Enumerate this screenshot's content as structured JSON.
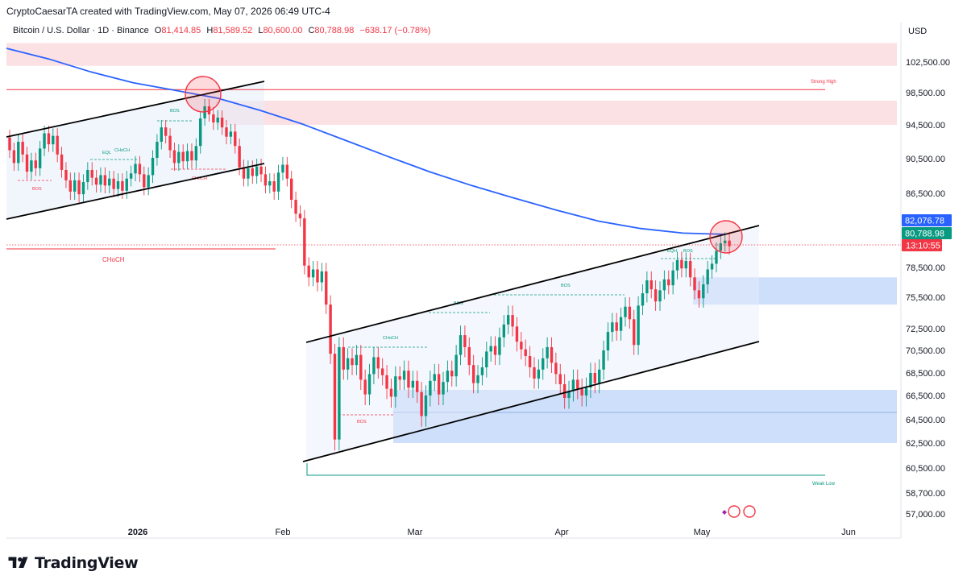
{
  "header": {
    "credit": "CryptoCaesarTA created with TradingView.com, May 07, 2026 06:49 UTC-4",
    "symbol": "Bitcoin / U.S. Dollar · 1D · Binance",
    "open_label": "O",
    "open": "81,414.85",
    "high_label": "H",
    "high": "81,589.52",
    "low_label": "L",
    "low": "80,600.00",
    "close_label": "C",
    "close": "80,788.98",
    "change": "−638.17 (−0.78%)",
    "currency": "USD"
  },
  "footer": {
    "brand": "TradingView",
    "brand_icon": "tradingview-logo-icon"
  },
  "colors": {
    "up": "#089981",
    "down": "#f23645",
    "ma": "#2962ff",
    "supply_zone": "#fcdcdf",
    "demand_zone": "#c9dcfb",
    "channel": "#000000"
  },
  "price_tags": {
    "ma_value": "82,076.78",
    "last_price": "80,788.98",
    "countdown": "13:10:55"
  },
  "chart_data": {
    "type": "candlestick",
    "symbol": "BTCUSD",
    "timeframe": "1D",
    "ylim": [
      56000,
      106000
    ],
    "y_ticks": [
      "102,500.00",
      "98,500.00",
      "94,500.00",
      "90,500.00",
      "86,500.00",
      "78,500.00",
      "75,500.00",
      "72,500.00",
      "70,500.00",
      "68,500.00",
      "66,500.00",
      "64,500.00",
      "62,500.00",
      "60,500.00",
      "58,700.00",
      "57,000.00"
    ],
    "x_ticks": [
      "2026",
      "Feb",
      "Mar",
      "Apr",
      "May",
      "Jun"
    ],
    "annotations": {
      "strong_high": "Strong High",
      "weak_low": "Weak Low",
      "choch_main": "CHoCH",
      "labels": [
        "BOS",
        "EQL",
        "CHoCH",
        "BOS",
        "CHoCH",
        "BOS",
        "CHoCH",
        "BOS",
        "BOS",
        "BOS",
        "EQH",
        "BOS"
      ]
    },
    "key_levels": {
      "strong_high": 98900,
      "weak_low": 60000,
      "choch_level": 81500,
      "last_close": 80788.98
    },
    "zones": [
      {
        "type": "supply",
        "from": 102000,
        "to": 105000
      },
      {
        "type": "supply",
        "from": 94500,
        "to": 97500
      },
      {
        "type": "demand",
        "from": 74800,
        "to": 77500
      },
      {
        "type": "demand",
        "from": 62500,
        "to": 67000
      }
    ],
    "sma_series": [
      {
        "day": 0,
        "v": 104300
      },
      {
        "day": 10,
        "v": 102900
      },
      {
        "day": 20,
        "v": 101200
      },
      {
        "day": 30,
        "v": 99800
      },
      {
        "day": 40,
        "v": 98800
      },
      {
        "day": 50,
        "v": 97800
      },
      {
        "day": 60,
        "v": 96300
      },
      {
        "day": 70,
        "v": 94600
      },
      {
        "day": 80,
        "v": 92700
      },
      {
        "day": 90,
        "v": 90800
      },
      {
        "day": 100,
        "v": 89000
      },
      {
        "day": 110,
        "v": 87400
      },
      {
        "day": 120,
        "v": 86000
      },
      {
        "day": 130,
        "v": 84700
      },
      {
        "day": 140,
        "v": 83500
      },
      {
        "day": 150,
        "v": 82700
      },
      {
        "day": 160,
        "v": 82200
      },
      {
        "day": 170,
        "v": 82077
      }
    ],
    "candles": [
      {
        "o": 93000,
        "c": 91500
      },
      {
        "o": 91500,
        "c": 90000
      },
      {
        "o": 90000,
        "c": 92500
      },
      {
        "o": 92500,
        "c": 91000
      },
      {
        "o": 91000,
        "c": 89000
      },
      {
        "o": 89000,
        "c": 90300
      },
      {
        "o": 90300,
        "c": 89400
      },
      {
        "o": 89400,
        "c": 91700
      },
      {
        "o": 91700,
        "c": 93500
      },
      {
        "o": 93500,
        "c": 92200
      },
      {
        "o": 92200,
        "c": 93200
      },
      {
        "o": 93200,
        "c": 91000
      },
      {
        "o": 91000,
        "c": 89200
      },
      {
        "o": 89200,
        "c": 88000
      },
      {
        "o": 88000,
        "c": 86700
      },
      {
        "o": 86700,
        "c": 88000
      },
      {
        "o": 88000,
        "c": 86400
      },
      {
        "o": 86400,
        "c": 87800
      },
      {
        "o": 87800,
        "c": 89200
      },
      {
        "o": 89200,
        "c": 88300
      },
      {
        "o": 88300,
        "c": 87500
      },
      {
        "o": 87500,
        "c": 88600
      },
      {
        "o": 88600,
        "c": 87400
      },
      {
        "o": 87400,
        "c": 88200
      },
      {
        "o": 88200,
        "c": 87000
      },
      {
        "o": 87000,
        "c": 87900
      },
      {
        "o": 87900,
        "c": 86800
      },
      {
        "o": 86800,
        "c": 88200
      },
      {
        "o": 88200,
        "c": 88800
      },
      {
        "o": 88800,
        "c": 89900
      },
      {
        "o": 89900,
        "c": 88700
      },
      {
        "o": 88700,
        "c": 87200
      },
      {
        "o": 87200,
        "c": 88600
      },
      {
        "o": 88600,
        "c": 90600
      },
      {
        "o": 90600,
        "c": 92500
      },
      {
        "o": 92500,
        "c": 94200
      },
      {
        "o": 94200,
        "c": 93200
      },
      {
        "o": 93200,
        "c": 91500
      },
      {
        "o": 91500,
        "c": 90000
      },
      {
        "o": 90000,
        "c": 91300
      },
      {
        "o": 91300,
        "c": 90200
      },
      {
        "o": 90200,
        "c": 91400
      },
      {
        "o": 91400,
        "c": 90300
      },
      {
        "o": 90300,
        "c": 92000
      },
      {
        "o": 92000,
        "c": 95300
      },
      {
        "o": 95300,
        "c": 96800
      },
      {
        "o": 96800,
        "c": 95800
      },
      {
        "o": 95800,
        "c": 94800
      },
      {
        "o": 94800,
        "c": 95400
      },
      {
        "o": 95400,
        "c": 94200
      },
      {
        "o": 94200,
        "c": 93100
      },
      {
        "o": 93100,
        "c": 93700
      },
      {
        "o": 93700,
        "c": 92000
      },
      {
        "o": 92000,
        "c": 89500
      },
      {
        "o": 89500,
        "c": 88200
      },
      {
        "o": 88200,
        "c": 89400
      },
      {
        "o": 89400,
        "c": 88500
      },
      {
        "o": 88500,
        "c": 89600
      },
      {
        "o": 89600,
        "c": 88700
      },
      {
        "o": 88700,
        "c": 87400
      },
      {
        "o": 87400,
        "c": 87900
      },
      {
        "o": 87900,
        "c": 86700
      },
      {
        "o": 86700,
        "c": 88900
      },
      {
        "o": 88900,
        "c": 89800
      },
      {
        "o": 89800,
        "c": 88200
      },
      {
        "o": 88200,
        "c": 85800
      },
      {
        "o": 85800,
        "c": 84300
      },
      {
        "o": 84300,
        "c": 83800
      },
      {
        "o": 83800,
        "c": 78700
      },
      {
        "o": 78700,
        "c": 77500
      },
      {
        "o": 77500,
        "c": 78300
      },
      {
        "o": 78300,
        "c": 77000
      },
      {
        "o": 77000,
        "c": 78100
      },
      {
        "o": 78100,
        "c": 74800
      },
      {
        "o": 74800,
        "c": 70200
      },
      {
        "o": 70200,
        "c": 62800
      },
      {
        "o": 62800,
        "c": 70800
      },
      {
        "o": 70800,
        "c": 68800
      },
      {
        "o": 68800,
        "c": 69800
      },
      {
        "o": 69800,
        "c": 69200
      },
      {
        "o": 69200,
        "c": 70100
      },
      {
        "o": 70100,
        "c": 67900
      },
      {
        "o": 67900,
        "c": 66600
      },
      {
        "o": 66600,
        "c": 68400
      },
      {
        "o": 68400,
        "c": 69900
      },
      {
        "o": 69900,
        "c": 68900
      },
      {
        "o": 68900,
        "c": 68300
      },
      {
        "o": 68300,
        "c": 67100
      },
      {
        "o": 67100,
        "c": 66400
      },
      {
        "o": 66400,
        "c": 68200
      },
      {
        "o": 68200,
        "c": 67900
      },
      {
        "o": 67900,
        "c": 68700
      },
      {
        "o": 68700,
        "c": 67200
      },
      {
        "o": 67200,
        "c": 67800
      },
      {
        "o": 67800,
        "c": 66800
      },
      {
        "o": 66800,
        "c": 64800
      },
      {
        "o": 64800,
        "c": 66500
      },
      {
        "o": 66500,
        "c": 67800
      },
      {
        "o": 67800,
        "c": 68400
      },
      {
        "o": 68400,
        "c": 66600
      },
      {
        "o": 66600,
        "c": 67700
      },
      {
        "o": 67700,
        "c": 68700
      },
      {
        "o": 68700,
        "c": 68200
      },
      {
        "o": 68200,
        "c": 70100
      },
      {
        "o": 70100,
        "c": 71900
      },
      {
        "o": 71900,
        "c": 70800
      },
      {
        "o": 70800,
        "c": 69200
      },
      {
        "o": 69200,
        "c": 67600
      },
      {
        "o": 67600,
        "c": 68300
      },
      {
        "o": 68300,
        "c": 69000
      },
      {
        "o": 69000,
        "c": 70400
      },
      {
        "o": 70400,
        "c": 70900
      },
      {
        "o": 70900,
        "c": 70100
      },
      {
        "o": 70100,
        "c": 71700
      },
      {
        "o": 71700,
        "c": 72900
      },
      {
        "o": 72900,
        "c": 73800
      },
      {
        "o": 73800,
        "c": 72700
      },
      {
        "o": 72700,
        "c": 71300
      },
      {
        "o": 71300,
        "c": 70600
      },
      {
        "o": 70600,
        "c": 70000
      },
      {
        "o": 70000,
        "c": 69000
      },
      {
        "o": 69000,
        "c": 68000
      },
      {
        "o": 68000,
        "c": 68800
      },
      {
        "o": 68800,
        "c": 69800
      },
      {
        "o": 69800,
        "c": 70800
      },
      {
        "o": 70800,
        "c": 69400
      },
      {
        "o": 69400,
        "c": 68400
      },
      {
        "o": 68400,
        "c": 67500
      },
      {
        "o": 67500,
        "c": 66300
      },
      {
        "o": 66300,
        "c": 66900
      },
      {
        "o": 66900,
        "c": 67900
      },
      {
        "o": 67900,
        "c": 67100
      },
      {
        "o": 67100,
        "c": 66500
      },
      {
        "o": 66500,
        "c": 67200
      },
      {
        "o": 67200,
        "c": 68500
      },
      {
        "o": 68500,
        "c": 67600
      },
      {
        "o": 67600,
        "c": 68800
      },
      {
        "o": 68800,
        "c": 70500
      },
      {
        "o": 70500,
        "c": 72200
      },
      {
        "o": 72200,
        "c": 73100
      },
      {
        "o": 73100,
        "c": 72300
      },
      {
        "o": 72300,
        "c": 73600
      },
      {
        "o": 73600,
        "c": 74600
      },
      {
        "o": 74600,
        "c": 73400
      },
      {
        "o": 73400,
        "c": 71000
      },
      {
        "o": 71000,
        "c": 74700
      },
      {
        "o": 74700,
        "c": 75900
      },
      {
        "o": 75900,
        "c": 77200
      },
      {
        "o": 77200,
        "c": 76300
      },
      {
        "o": 76300,
        "c": 75100
      },
      {
        "o": 75100,
        "c": 76200
      },
      {
        "o": 76200,
        "c": 77300
      },
      {
        "o": 77300,
        "c": 76700
      },
      {
        "o": 76700,
        "c": 78200
      },
      {
        "o": 78200,
        "c": 79300
      },
      {
        "o": 79300,
        "c": 78400
      },
      {
        "o": 78400,
        "c": 79200
      },
      {
        "o": 79200,
        "c": 77500
      },
      {
        "o": 77500,
        "c": 76200
      },
      {
        "o": 76200,
        "c": 75400
      },
      {
        "o": 75400,
        "c": 76800
      },
      {
        "o": 76800,
        "c": 78300
      },
      {
        "o": 78300,
        "c": 78900
      },
      {
        "o": 78900,
        "c": 80300
      },
      {
        "o": 80300,
        "c": 81100
      },
      {
        "o": 81100,
        "c": 81400
      },
      {
        "o": 81400,
        "c": 80789
      }
    ]
  }
}
